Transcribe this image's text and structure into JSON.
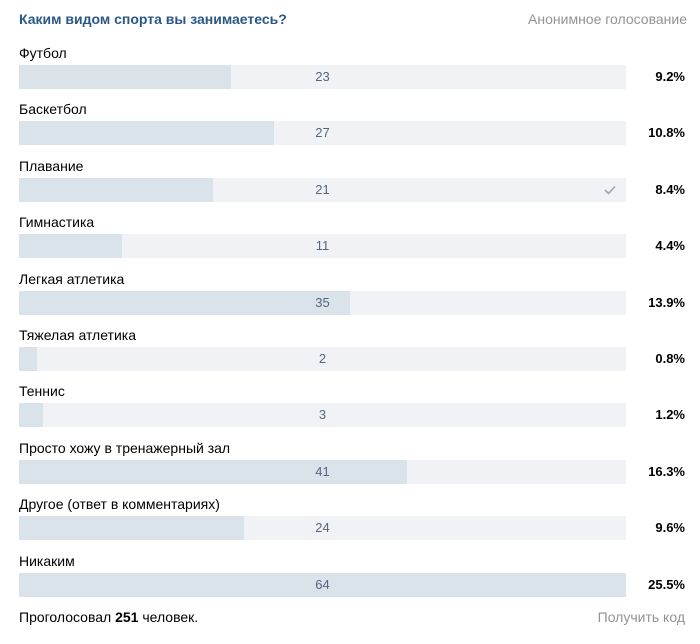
{
  "poll": {
    "title": "Каким видом спорта вы занимаетесь?",
    "type_label": "Анонимное голосование",
    "options": [
      {
        "label": "Футбол",
        "count": "23",
        "percent": "9.2%",
        "fill": 0.35,
        "voted": false
      },
      {
        "label": "Баскетбол",
        "count": "27",
        "percent": "10.8%",
        "fill": 0.42,
        "voted": false
      },
      {
        "label": "Плавание",
        "count": "21",
        "percent": "8.4%",
        "fill": 0.32,
        "voted": true
      },
      {
        "label": "Гимнастика",
        "count": "11",
        "percent": "4.4%",
        "fill": 0.17,
        "voted": false
      },
      {
        "label": "Легкая атлетика",
        "count": "35",
        "percent": "13.9%",
        "fill": 0.545,
        "voted": false
      },
      {
        "label": "Тяжелая атлетика",
        "count": "2",
        "percent": "0.8%",
        "fill": 0.03,
        "voted": false
      },
      {
        "label": "Теннис",
        "count": "3",
        "percent": "1.2%",
        "fill": 0.04,
        "voted": false
      },
      {
        "label": "Просто хожу в тренажерный зал",
        "count": "41",
        "percent": "16.3%",
        "fill": 0.64,
        "voted": false
      },
      {
        "label": "Другое (ответ в комментариях)",
        "count": "24",
        "percent": "9.6%",
        "fill": 0.37,
        "voted": false
      },
      {
        "label": "Никаким",
        "count": "64",
        "percent": "25.5%",
        "fill": 1.0,
        "voted": false
      }
    ],
    "footer": {
      "voted_prefix": "Проголосовал",
      "voted_count": "251",
      "voted_suffix": "человек.",
      "get_code_label": "Получить код"
    }
  },
  "colors": {
    "title": "#2a5885",
    "muted": "#939393",
    "bar_track": "#f0f2f5",
    "bar_fill": "#dae2ea",
    "bar_count": "#55677d",
    "check": "#99a6b5"
  }
}
